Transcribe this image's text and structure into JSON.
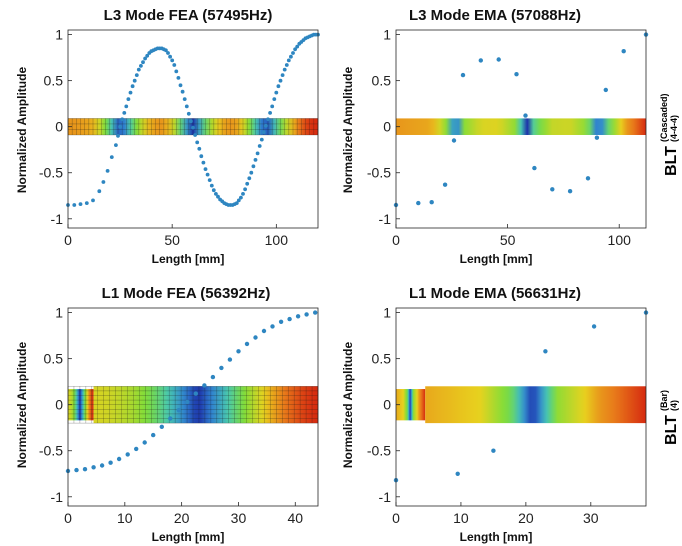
{
  "chart_data": [
    {
      "type": "scatter",
      "title": "L3 Mode FEA (57495Hz)",
      "xlabel": "Length [mm]",
      "ylabel": "Normalized Amplitude",
      "xlim": [
        0,
        120
      ],
      "ylim": [
        -1.1,
        1.05
      ],
      "xticks": [
        0,
        50,
        100
      ],
      "yticks": [
        -1,
        -0.5,
        0,
        0.5,
        1
      ],
      "bar_style": "mesh",
      "bar_half_height": 0.09,
      "bar_step_at": null,
      "color": "#2e86c1",
      "series": [
        {
          "x": [
            0,
            3,
            6,
            9,
            12,
            15,
            17,
            19,
            21,
            23,
            24,
            25,
            26,
            27,
            28,
            29,
            30,
            31,
            32,
            33,
            34,
            35,
            36,
            37,
            38,
            39,
            40,
            41,
            42,
            43,
            44,
            45,
            46,
            47,
            48,
            49,
            50,
            51,
            52,
            53,
            54,
            55,
            56,
            57,
            58,
            59,
            60,
            61,
            62,
            63,
            64,
            65,
            66,
            67,
            68,
            69,
            70,
            71,
            72,
            73,
            74,
            75,
            76,
            77,
            78,
            79,
            80,
            81,
            82,
            83,
            84,
            85,
            86,
            87,
            88,
            89,
            90,
            91,
            92,
            93,
            94,
            95,
            96,
            97,
            98,
            99,
            100,
            101,
            102,
            103,
            104,
            105,
            106,
            107,
            108,
            109,
            110,
            111,
            112,
            113,
            114,
            115,
            116,
            117,
            118,
            119,
            120
          ],
          "y": [
            -0.85,
            -0.85,
            -0.84,
            -0.83,
            -0.8,
            -0.7,
            -0.6,
            -0.48,
            -0.33,
            -0.2,
            -0.1,
            0,
            0.08,
            0.15,
            0.22,
            0.3,
            0.37,
            0.44,
            0.5,
            0.56,
            0.62,
            0.66,
            0.7,
            0.74,
            0.77,
            0.8,
            0.82,
            0.83,
            0.84,
            0.85,
            0.85,
            0.85,
            0.84,
            0.83,
            0.8,
            0.76,
            0.72,
            0.67,
            0.6,
            0.53,
            0.45,
            0.38,
            0.3,
            0.22,
            0.14,
            0.06,
            -0.01,
            -0.09,
            -0.17,
            -0.24,
            -0.32,
            -0.39,
            -0.46,
            -0.52,
            -0.58,
            -0.64,
            -0.69,
            -0.73,
            -0.76,
            -0.79,
            -0.81,
            -0.83,
            -0.84,
            -0.85,
            -0.85,
            -0.85,
            -0.84,
            -0.83,
            -0.8,
            -0.77,
            -0.73,
            -0.68,
            -0.62,
            -0.56,
            -0.5,
            -0.43,
            -0.36,
            -0.29,
            -0.21,
            -0.14,
            -0.06,
            0.01,
            0.08,
            0.15,
            0.22,
            0.3,
            0.37,
            0.44,
            0.5,
            0.56,
            0.62,
            0.67,
            0.72,
            0.76,
            0.8,
            0.84,
            0.87,
            0.9,
            0.92,
            0.94,
            0.96,
            0.97,
            0.98,
            0.99,
            1.0,
            1.0,
            1.0
          ]
        }
      ]
    },
    {
      "type": "scatter",
      "title": "L3 Mode EMA (57088Hz)",
      "xlabel": "Length [mm]",
      "ylabel": "Normalized Amplitude",
      "xlim": [
        0,
        112
      ],
      "ylim": [
        -1.1,
        1.05
      ],
      "xticks": [
        0,
        50,
        100
      ],
      "yticks": [
        -1,
        -0.5,
        0,
        0.5,
        1
      ],
      "bar_style": "smooth",
      "bar_half_height": 0.09,
      "bar_step_at": null,
      "color": "#2e86c1",
      "series": [
        {
          "x": [
            0,
            10,
            16,
            22,
            26,
            30,
            38,
            46,
            54,
            58,
            62,
            70,
            78,
            86,
            90,
            94,
            102,
            112
          ],
          "y": [
            -0.85,
            -0.83,
            -0.82,
            -0.63,
            -0.15,
            0.56,
            0.72,
            0.73,
            0.57,
            0.12,
            -0.45,
            -0.68,
            -0.7,
            -0.56,
            -0.12,
            0.4,
            0.82,
            1.0
          ]
        }
      ]
    },
    {
      "type": "scatter",
      "title": "L1 Mode FEA (56392Hz)",
      "xlabel": "Length [mm]",
      "ylabel": "Normalized Amplitude",
      "xlim": [
        0,
        44
      ],
      "ylim": [
        -1.1,
        1.05
      ],
      "xticks": [
        0,
        10,
        20,
        30,
        40
      ],
      "yticks": [
        -1,
        -0.5,
        0,
        0.5,
        1
      ],
      "bar_style": "mesh",
      "bar_half_height": 0.2,
      "bar_step_at": 4.5,
      "color": "#2e86c1",
      "series": [
        {
          "x": [
            0,
            1.5,
            3,
            4.5,
            6,
            7.5,
            9,
            10.5,
            12,
            13.5,
            15,
            16.5,
            18,
            19.5,
            21,
            22.5,
            24,
            25.5,
            27,
            28.5,
            30,
            31.5,
            33,
            34.5,
            36,
            37.5,
            39,
            40.5,
            42,
            43.5
          ],
          "y": [
            -0.72,
            -0.71,
            -0.7,
            -0.68,
            -0.66,
            -0.63,
            -0.59,
            -0.54,
            -0.48,
            -0.41,
            -0.33,
            -0.24,
            -0.15,
            -0.06,
            0.03,
            0.12,
            0.21,
            0.3,
            0.4,
            0.49,
            0.58,
            0.66,
            0.73,
            0.8,
            0.85,
            0.9,
            0.93,
            0.96,
            0.98,
            1.0
          ]
        }
      ]
    },
    {
      "type": "scatter",
      "title": "L1 Mode EMA (56631Hz)",
      "xlabel": "Length [mm]",
      "ylabel": "Normalized Amplitude",
      "xlim": [
        0,
        38.5
      ],
      "ylim": [
        -1.1,
        1.05
      ],
      "xticks": [
        0,
        10,
        20,
        30
      ],
      "yticks": [
        -1,
        -0.5,
        0,
        0.5,
        1
      ],
      "bar_style": "smooth",
      "bar_half_height": 0.2,
      "bar_step_at": 4.5,
      "color": "#2e86c1",
      "series": [
        {
          "x": [
            0,
            9.5,
            15,
            23,
            30.5,
            38.5
          ],
          "y": [
            -0.82,
            -0.75,
            -0.5,
            0.58,
            0.85,
            1.0
          ]
        }
      ]
    }
  ],
  "side_labels": [
    {
      "main": "BLT",
      "sup1": "(Cascaded)",
      "sup2": "(4-4-4)"
    },
    {
      "main": "BLT",
      "sup1": "(Bar)",
      "sup2": "(4)"
    }
  ]
}
